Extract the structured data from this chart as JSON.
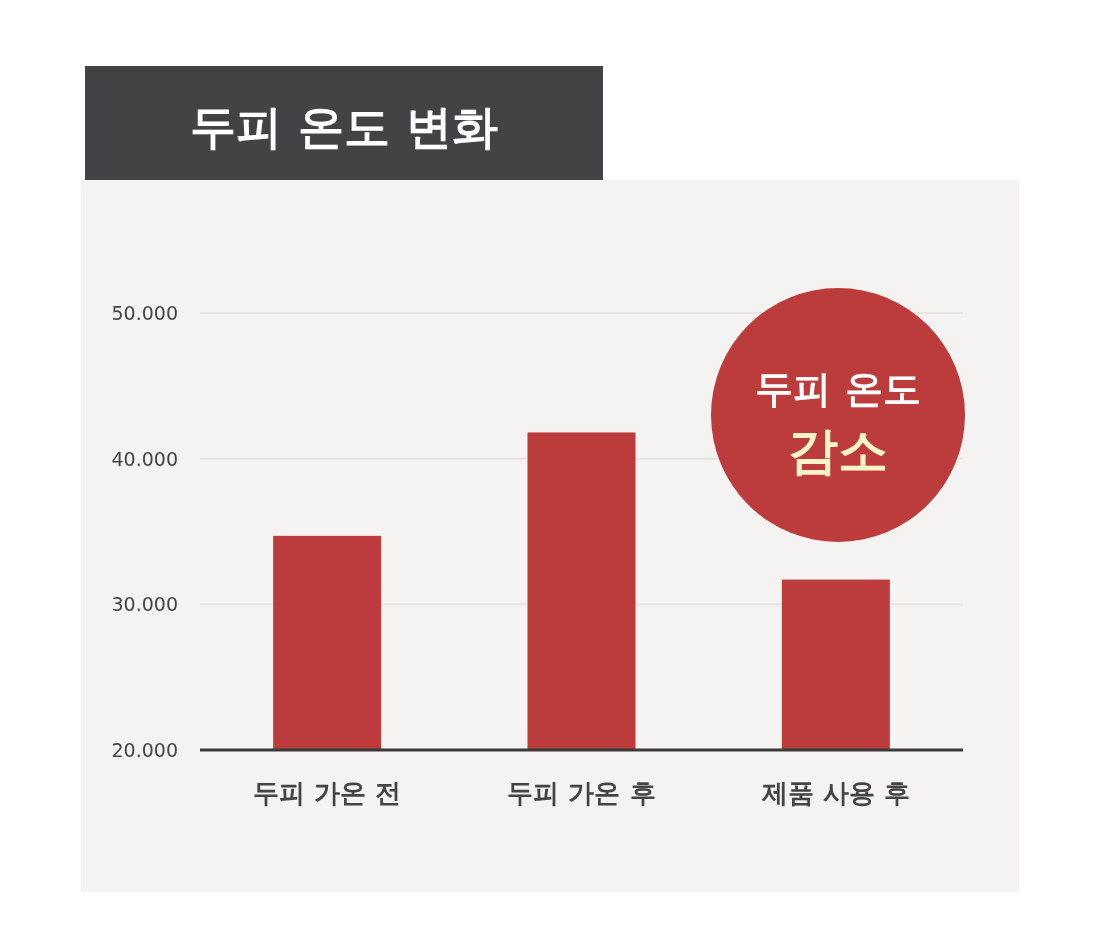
{
  "chart_data": {
    "type": "bar",
    "title": "두피 온도 변화",
    "categories": [
      "두피 가온 전",
      "두피 가온 후",
      "제품 사용 후"
    ],
    "values": [
      34.7,
      41.8,
      31.7
    ],
    "color": "#bc3c3c",
    "ylim": [
      20,
      50
    ],
    "yticks": [
      {
        "value": 20,
        "label": "20.000"
      },
      {
        "value": 30,
        "label": "30.000"
      },
      {
        "value": 40,
        "label": "40.000"
      },
      {
        "value": 50,
        "label": "50.000"
      }
    ],
    "grid": "y",
    "annotations": [
      "두피 온도",
      "감소"
    ]
  }
}
